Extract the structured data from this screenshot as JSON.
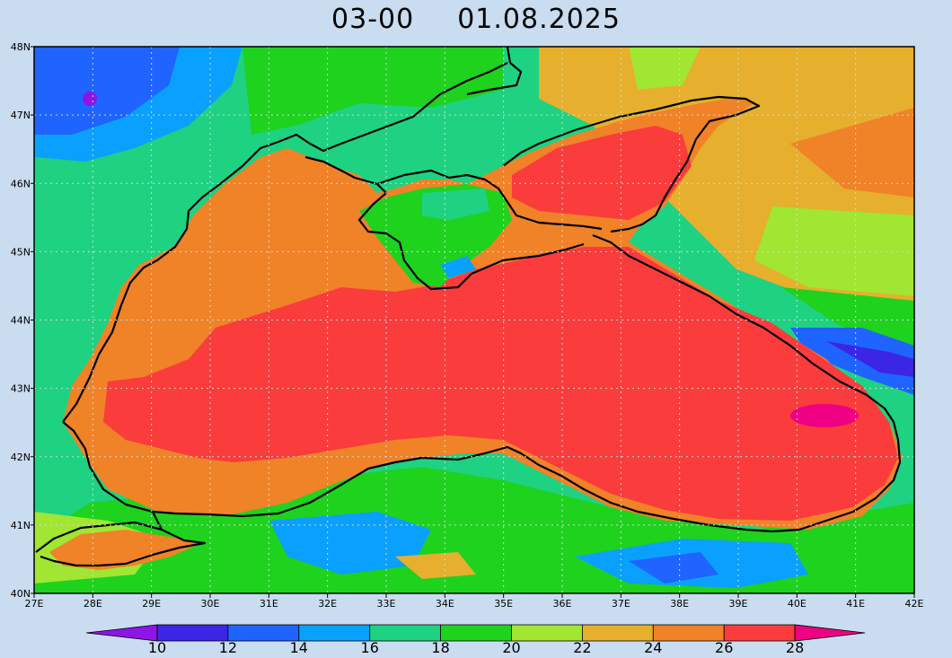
{
  "title": {
    "time": "03-00",
    "date": "01.08.2025"
  },
  "axes": {
    "lon_labels": [
      "27E",
      "28E",
      "29E",
      "30E",
      "31E",
      "32E",
      "33E",
      "34E",
      "35E",
      "36E",
      "37E",
      "38E",
      "39E",
      "40E",
      "41E",
      "42E"
    ],
    "lat_labels": [
      "40N",
      "41N",
      "42N",
      "43N",
      "44N",
      "45N",
      "46N",
      "47N",
      "48N"
    ],
    "lon_range": [
      27,
      42
    ],
    "lat_range": [
      40,
      48
    ],
    "grid": true
  },
  "colorbar": {
    "labels": [
      "10",
      "12",
      "14",
      "16",
      "18",
      "20",
      "22",
      "24",
      "26",
      "28"
    ],
    "colors": [
      "#8f14e6",
      "#3c26e6",
      "#1f64ff",
      "#0aa0ff",
      "#1ed282",
      "#1ed21e",
      "#a0e632",
      "#e6af2d",
      "#f08228",
      "#fa3c3c",
      "#f00082"
    ],
    "extends": "both"
  },
  "palette": {
    "below_10": "#8f14e6",
    "c12": "#3c26e6",
    "c14": "#1f64ff",
    "c16": "#0aa0ff",
    "c18": "#1ed282",
    "c20": "#1ed21e",
    "c22": "#a0e632",
    "c24": "#e6af2d",
    "c26": "#f08228",
    "c28": "#fa3c3c",
    "above_28": "#f00082",
    "background": "#c9dcf0"
  }
}
